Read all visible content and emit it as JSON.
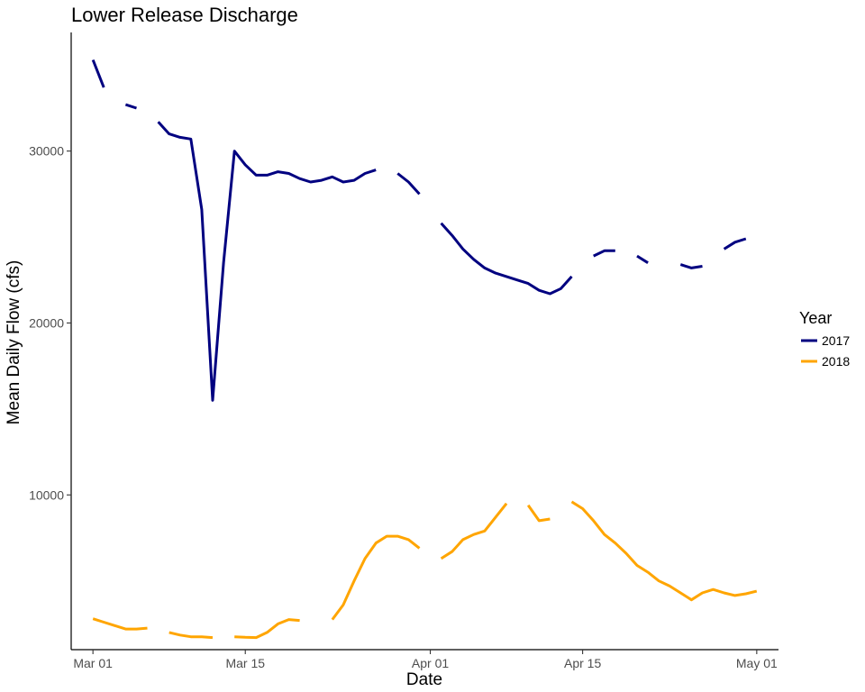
{
  "chart_data": {
    "type": "line",
    "title": "Lower Release Discharge",
    "xlabel": "Date",
    "ylabel": "Mean Daily Flow (cfs)",
    "x_tick_labels": [
      "Mar 01",
      "Mar 15",
      "Apr 01",
      "Apr 15",
      "May 01"
    ],
    "y_tick_labels": [
      "10000",
      "20000",
      "30000"
    ],
    "y_ticks": [
      10000,
      20000,
      30000
    ],
    "xlim": [
      "Feb 27",
      "May 03"
    ],
    "ylim": [
      1000,
      36900
    ],
    "grid": false,
    "legend": {
      "title": "Year",
      "position": "right"
    },
    "series": [
      {
        "name": "2017",
        "color": "#000080",
        "segments": [
          [
            [
              "Mar 01",
              35300
            ],
            [
              "Mar 02",
              33700
            ]
          ],
          [
            [
              "Mar 04",
              32700
            ],
            [
              "Mar 05",
              32500
            ]
          ],
          [
            [
              "Mar 07",
              31700
            ],
            [
              "Mar 08",
              31000
            ],
            [
              "Mar 09",
              30800
            ],
            [
              "Mar 10",
              30700
            ],
            [
              "Mar 11",
              26600
            ],
            [
              "Mar 12",
              15500
            ],
            [
              "Mar 13",
              23500
            ],
            [
              "Mar 14",
              30000
            ],
            [
              "Mar 15",
              29200
            ],
            [
              "Mar 16",
              28600
            ],
            [
              "Mar 17",
              28600
            ],
            [
              "Mar 18",
              28800
            ],
            [
              "Mar 19",
              28700
            ],
            [
              "Mar 20",
              28400
            ],
            [
              "Mar 21",
              28200
            ],
            [
              "Mar 22",
              28300
            ],
            [
              "Mar 23",
              28500
            ],
            [
              "Mar 24",
              28200
            ],
            [
              "Mar 25",
              28300
            ],
            [
              "Mar 26",
              28700
            ],
            [
              "Mar 27",
              28900
            ]
          ],
          [
            [
              "Mar 29",
              28700
            ],
            [
              "Mar 30",
              28200
            ],
            [
              "Mar 31",
              27500
            ]
          ],
          [
            [
              "Apr 02",
              25800
            ],
            [
              "Apr 03",
              25100
            ],
            [
              "Apr 04",
              24300
            ],
            [
              "Apr 05",
              23700
            ],
            [
              "Apr 06",
              23200
            ],
            [
              "Apr 07",
              22900
            ],
            [
              "Apr 08",
              22700
            ],
            [
              "Apr 09",
              22500
            ],
            [
              "Apr 10",
              22300
            ],
            [
              "Apr 11",
              21900
            ],
            [
              "Apr 12",
              21700
            ],
            [
              "Apr 13",
              22000
            ],
            [
              "Apr 14",
              22700
            ]
          ],
          [
            [
              "Apr 16",
              23900
            ],
            [
              "Apr 17",
              24200
            ],
            [
              "Apr 18",
              24200
            ]
          ],
          [
            [
              "Apr 20",
              23900
            ],
            [
              "Apr 21",
              23500
            ]
          ],
          [
            [
              "Apr 24",
              23400
            ],
            [
              "Apr 25",
              23200
            ],
            [
              "Apr 26",
              23300
            ]
          ],
          [
            [
              "Apr 28",
              24300
            ],
            [
              "Apr 29",
              24700
            ],
            [
              "Apr 30",
              24900
            ]
          ]
        ]
      },
      {
        "name": "2018",
        "color": "#ffa500",
        "segments": [
          [
            [
              "Mar 01",
              2800
            ],
            [
              "Mar 02",
              2600
            ],
            [
              "Mar 03",
              2400
            ],
            [
              "Mar 04",
              2200
            ],
            [
              "Mar 05",
              2200
            ],
            [
              "Mar 06",
              2250
            ]
          ],
          [
            [
              "Mar 08",
              2000
            ],
            [
              "Mar 09",
              1850
            ],
            [
              "Mar 10",
              1750
            ],
            [
              "Mar 11",
              1750
            ],
            [
              "Mar 12",
              1700
            ]
          ],
          [
            [
              "Mar 14",
              1750
            ],
            [
              "Mar 15",
              1720
            ],
            [
              "Mar 16",
              1700
            ],
            [
              "Mar 17",
              2000
            ],
            [
              "Mar 18",
              2500
            ],
            [
              "Mar 19",
              2750
            ],
            [
              "Mar 20",
              2700
            ]
          ],
          [
            [
              "Mar 23",
              2750
            ],
            [
              "Mar 24",
              3600
            ],
            [
              "Mar 25",
              5000
            ],
            [
              "Mar 26",
              6300
            ],
            [
              "Mar 27",
              7200
            ],
            [
              "Mar 28",
              7600
            ],
            [
              "Mar 29",
              7600
            ],
            [
              "Mar 30",
              7400
            ],
            [
              "Mar 31",
              6900
            ]
          ],
          [
            [
              "Apr 02",
              6300
            ],
            [
              "Apr 03",
              6700
            ],
            [
              "Apr 04",
              7400
            ],
            [
              "Apr 05",
              7700
            ],
            [
              "Apr 06",
              7900
            ],
            [
              "Apr 07",
              8700
            ],
            [
              "Apr 08",
              9500
            ]
          ],
          [
            [
              "Apr 10",
              9400
            ],
            [
              "Apr 11",
              8500
            ],
            [
              "Apr 12",
              8600
            ]
          ],
          [
            [
              "Apr 14",
              9600
            ],
            [
              "Apr 15",
              9200
            ],
            [
              "Apr 16",
              8500
            ],
            [
              "Apr 17",
              7700
            ],
            [
              "Apr 18",
              7200
            ],
            [
              "Apr 19",
              6600
            ],
            [
              "Apr 20",
              5900
            ],
            [
              "Apr 21",
              5500
            ],
            [
              "Apr 22",
              5000
            ],
            [
              "Apr 23",
              4700
            ],
            [
              "Apr 24",
              4300
            ],
            [
              "Apr 25",
              3900
            ],
            [
              "Apr 26",
              4300
            ],
            [
              "Apr 27",
              4500
            ],
            [
              "Apr 28",
              4300
            ],
            [
              "Apr 29",
              4150
            ],
            [
              "Apr 30",
              4250
            ],
            [
              "May 01",
              4400
            ]
          ]
        ]
      }
    ]
  }
}
